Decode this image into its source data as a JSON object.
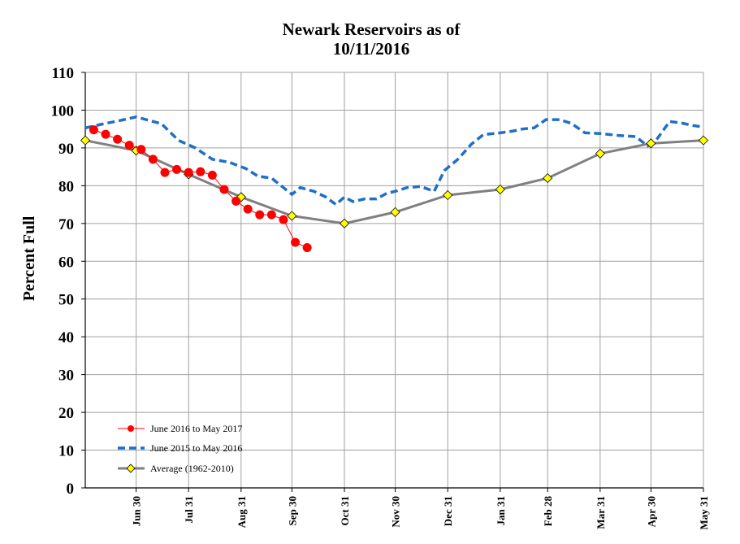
{
  "chart_data": {
    "type": "line",
    "title": [
      "Newark Reservoirs as of",
      "10/11/2016"
    ],
    "ylabel": "Percent Full",
    "xlabel": "",
    "ylim": [
      0,
      110
    ],
    "yticks": [
      0,
      10,
      20,
      30,
      40,
      50,
      60,
      70,
      80,
      90,
      100,
      110
    ],
    "xlim": [
      0,
      365
    ],
    "x_tick_labels": [
      {
        "label": "Jun 30",
        "x": 30
      },
      {
        "label": "Jul 31",
        "x": 61
      },
      {
        "label": "Aug 31",
        "x": 92
      },
      {
        "label": "Sep 30",
        "x": 122
      },
      {
        "label": "Oct 31",
        "x": 153
      },
      {
        "label": "Nov 30",
        "x": 183
      },
      {
        "label": "Dec 31",
        "x": 214
      },
      {
        "label": "Jan 31",
        "x": 245
      },
      {
        "label": "Feb 28",
        "x": 273
      },
      {
        "label": "Mar 31",
        "x": 304
      },
      {
        "label": "Apr 30",
        "x": 334
      },
      {
        "label": "May 31",
        "x": 365
      }
    ],
    "grid": {
      "horizontal": true,
      "vertical": true
    },
    "legend_position": "bottom-left",
    "series": [
      {
        "name": "June 2016 to May 2017",
        "color": "#ff0000",
        "marker": "circle",
        "style": "solid",
        "points": [
          [
            5,
            94.8
          ],
          [
            12,
            93.6
          ],
          [
            19,
            92.3
          ],
          [
            26,
            90.7
          ],
          [
            33,
            89.6
          ],
          [
            40,
            87.0
          ],
          [
            47,
            83.5
          ],
          [
            54,
            84.3
          ],
          [
            61,
            83.5
          ],
          [
            68,
            83.7
          ],
          [
            75,
            82.8
          ],
          [
            82,
            79.0
          ],
          [
            89,
            75.9
          ],
          [
            96,
            73.8
          ],
          [
            103,
            72.3
          ],
          [
            110,
            72.3
          ],
          [
            117,
            71.0
          ],
          [
            124,
            65.0
          ],
          [
            131,
            63.6
          ]
        ]
      },
      {
        "name": "June 2015 to May 2016",
        "color": "#1f6fc6",
        "marker": "none",
        "style": "dashed",
        "points": [
          [
            0,
            95.3
          ],
          [
            10,
            96.3
          ],
          [
            20,
            97.2
          ],
          [
            30,
            98.2
          ],
          [
            40,
            97.0
          ],
          [
            45,
            96.4
          ],
          [
            55,
            92.0
          ],
          [
            65,
            90.0
          ],
          [
            75,
            87.0
          ],
          [
            85,
            86.2
          ],
          [
            95,
            84.5
          ],
          [
            102,
            82.5
          ],
          [
            110,
            82.0
          ],
          [
            117,
            79.5
          ],
          [
            122,
            77.7
          ],
          [
            127,
            79.5
          ],
          [
            135,
            78.5
          ],
          [
            142,
            77.0
          ],
          [
            148,
            75.0
          ],
          [
            153,
            77.0
          ],
          [
            158,
            75.8
          ],
          [
            165,
            76.5
          ],
          [
            172,
            76.5
          ],
          [
            178,
            78.0
          ],
          [
            183,
            78.5
          ],
          [
            190,
            79.5
          ],
          [
            198,
            79.8
          ],
          [
            206,
            78.5
          ],
          [
            212,
            84.0
          ],
          [
            220,
            87.0
          ],
          [
            228,
            91.0
          ],
          [
            235,
            93.5
          ],
          [
            245,
            94.0
          ],
          [
            253,
            94.5
          ],
          [
            258,
            95.0
          ],
          [
            265,
            95.3
          ],
          [
            272,
            97.5
          ],
          [
            280,
            97.5
          ],
          [
            287,
            96.5
          ],
          [
            295,
            94.0
          ],
          [
            304,
            93.8
          ],
          [
            315,
            93.3
          ],
          [
            325,
            93.0
          ],
          [
            332,
            90.5
          ],
          [
            337,
            92.0
          ],
          [
            345,
            97.0
          ],
          [
            352,
            96.6
          ],
          [
            358,
            96.0
          ],
          [
            365,
            95.5
          ]
        ]
      },
      {
        "name": "Average (1962-2010)",
        "color": "#808080",
        "marker": "diamond",
        "marker_color": "#ffff00",
        "style": "solid",
        "points": [
          [
            0,
            92.0
          ],
          [
            30,
            89.3
          ],
          [
            61,
            83.0
          ],
          [
            92,
            77.0
          ],
          [
            122,
            72.0
          ],
          [
            153,
            70.0
          ],
          [
            183,
            73.0
          ],
          [
            214,
            77.5
          ],
          [
            245,
            79.0
          ],
          [
            273,
            82.0
          ],
          [
            304,
            88.5
          ],
          [
            334,
            91.2
          ],
          [
            365,
            92.0
          ]
        ]
      }
    ]
  }
}
